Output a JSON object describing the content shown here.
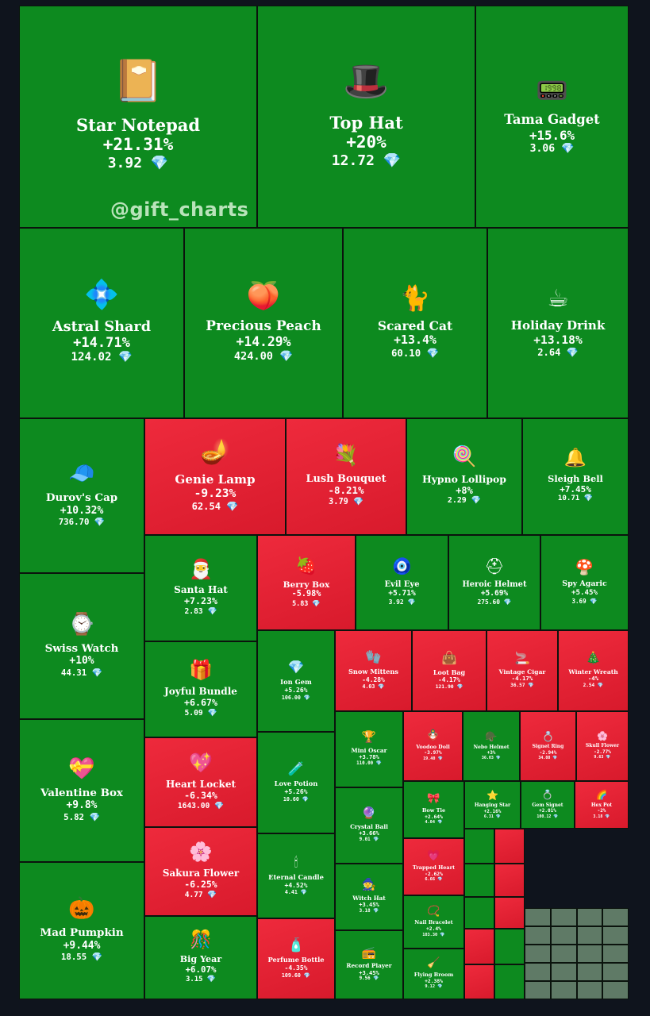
{
  "watermark": "@gift_charts",
  "colors": {
    "positive": "#0d8a1f",
    "negative": "#e52234",
    "neutral": "#5f7a66",
    "background": "#0f141d",
    "currency_icon": "#6fd6ff"
  },
  "currency_icon": "diamond-icon",
  "chart_data": {
    "type": "treemap",
    "currency_symbol": "💎",
    "items": [
      {
        "name": "Star Notepad",
        "change": "+21.31%",
        "change_value": 21.31,
        "price": "3.92",
        "icon": "📔"
      },
      {
        "name": "Top Hat",
        "change": "+20%",
        "change_value": 20,
        "price": "12.72",
        "icon": "🎩"
      },
      {
        "name": "Tama Gadget",
        "change": "+15.6%",
        "change_value": 15.6,
        "price": "3.06",
        "icon": "📟"
      },
      {
        "name": "Astral Shard",
        "change": "+14.71%",
        "change_value": 14.71,
        "price": "124.02",
        "icon": "💠"
      },
      {
        "name": "Precious Peach",
        "change": "+14.29%",
        "change_value": 14.29,
        "price": "424.00",
        "icon": "🍑"
      },
      {
        "name": "Scared Cat",
        "change": "+13.4%",
        "change_value": 13.4,
        "price": "60.10",
        "icon": "🐈"
      },
      {
        "name": "Holiday Drink",
        "change": "+13.18%",
        "change_value": 13.18,
        "price": "2.64",
        "icon": "☕"
      },
      {
        "name": "Durov's Cap",
        "change": "+10.32%",
        "change_value": 10.32,
        "price": "736.70",
        "icon": "🧢"
      },
      {
        "name": "Genie Lamp",
        "change": "-9.23%",
        "change_value": -9.23,
        "price": "62.54",
        "icon": "🪔"
      },
      {
        "name": "Lush Bouquet",
        "change": "-8.21%",
        "change_value": -8.21,
        "price": "3.79",
        "icon": "💐"
      },
      {
        "name": "Hypno Lollipop",
        "change": "+8%",
        "change_value": 8,
        "price": "2.29",
        "icon": "🍭"
      },
      {
        "name": "Sleigh Bell",
        "change": "+7.45%",
        "change_value": 7.45,
        "price": "10.71",
        "icon": "🔔"
      },
      {
        "name": "Santa Hat",
        "change": "+7.23%",
        "change_value": 7.23,
        "price": "2.83",
        "icon": "🎅"
      },
      {
        "name": "Berry Box",
        "change": "-5.98%",
        "change_value": -5.98,
        "price": "5.83",
        "icon": "🍓"
      },
      {
        "name": "Evil Eye",
        "change": "+5.71%",
        "change_value": 5.71,
        "price": "3.92",
        "icon": "🧿"
      },
      {
        "name": "Heroic Helmet",
        "change": "+5.69%",
        "change_value": 5.69,
        "price": "275.60",
        "icon": "⛑"
      },
      {
        "name": "Spy Agaric",
        "change": "+5.45%",
        "change_value": 5.45,
        "price": "3.69",
        "icon": "🍄"
      },
      {
        "name": "Swiss Watch",
        "change": "+10%",
        "change_value": 10,
        "price": "44.31",
        "icon": "⌚"
      },
      {
        "name": "Joyful Bundle",
        "change": "+6.67%",
        "change_value": 6.67,
        "price": "5.09",
        "icon": "🎁"
      },
      {
        "name": "Ion Gem",
        "change": "+5.26%",
        "change_value": 5.26,
        "price": "106.00",
        "icon": "💎"
      },
      {
        "name": "Snow Mittens",
        "change": "-4.28%",
        "change_value": -4.28,
        "price": "4.03",
        "icon": "🧤"
      },
      {
        "name": "Loot Bag",
        "change": "-4.17%",
        "change_value": -4.17,
        "price": "121.90",
        "icon": "👜"
      },
      {
        "name": "Vintage Cigar",
        "change": "-4.17%",
        "change_value": -4.17,
        "price": "36.57",
        "icon": "🚬"
      },
      {
        "name": "Winter Wreath",
        "change": "-4%",
        "change_value": -4,
        "price": "2.54",
        "icon": "🎄"
      },
      {
        "name": "Valentine Box",
        "change": "+9.8%",
        "change_value": 9.8,
        "price": "5.82",
        "icon": "💝"
      },
      {
        "name": "Heart Locket",
        "change": "-6.34%",
        "change_value": -6.34,
        "price": "1643.00",
        "icon": "💖"
      },
      {
        "name": "Love Potion",
        "change": "+5.26%",
        "change_value": 5.26,
        "price": "10.60",
        "icon": "🧪"
      },
      {
        "name": "Mini Oscar",
        "change": "+3.78%",
        "change_value": 3.78,
        "price": "110.00",
        "icon": "🏆"
      },
      {
        "name": "Voodoo Doll",
        "change": "-3.97%",
        "change_value": -3.97,
        "price": "19.40",
        "icon": "🪆"
      },
      {
        "name": "Nebo Helmet",
        "change": "+3%",
        "change_value": 3,
        "price": "36.03",
        "icon": "🪖"
      },
      {
        "name": "Signet Ring",
        "change": "-2.94%",
        "change_value": -2.94,
        "price": "34.08",
        "icon": "💍"
      },
      {
        "name": "Skull Flower",
        "change": "-2.77%",
        "change_value": -2.77,
        "price": "9.63",
        "icon": "🌸"
      },
      {
        "name": "Crystal Ball",
        "change": "+3.66%",
        "change_value": 3.66,
        "price": "9.01",
        "icon": "🔮"
      },
      {
        "name": "Bow Tie",
        "change": "+2.64%",
        "change_value": 2.64,
        "price": "4.04",
        "icon": "🎀"
      },
      {
        "name": "Hanging Star",
        "change": "+2.16%",
        "change_value": 2.16,
        "price": "6.31",
        "icon": "⭐"
      },
      {
        "name": "Gem Signet",
        "change": "+2.01%",
        "change_value": 2.01,
        "price": "100.12",
        "icon": "💍"
      },
      {
        "name": "Hex Pot",
        "change": "-2%",
        "change_value": -2,
        "price": "3.18",
        "icon": "🌈"
      },
      {
        "name": "Sakura Flower",
        "change": "-6.25%",
        "change_value": -6.25,
        "price": "4.77",
        "icon": "🌸"
      },
      {
        "name": "Eternal Candle",
        "change": "+4.52%",
        "change_value": 4.52,
        "price": "4.41",
        "icon": "🕯"
      },
      {
        "name": "Trapped Heart",
        "change": "-2.62%",
        "change_value": -2.62,
        "price": "6.66",
        "icon": "💗"
      },
      {
        "name": "Mad Pumpkin",
        "change": "+9.44%",
        "change_value": 9.44,
        "price": "18.55",
        "icon": "🎃"
      },
      {
        "name": "Big Year",
        "change": "+6.07%",
        "change_value": 6.07,
        "price": "3.15",
        "icon": "🎊"
      },
      {
        "name": "Perfume Bottle",
        "change": "-4.35%",
        "change_value": -4.35,
        "price": "109.60",
        "icon": "🧴"
      },
      {
        "name": "Witch Hat",
        "change": "+3.45%",
        "change_value": 3.45,
        "price": "3.18",
        "icon": "🧙"
      },
      {
        "name": "Record Player",
        "change": "+3.45%",
        "change_value": 3.45,
        "price": "9.56",
        "icon": "📻"
      },
      {
        "name": "Nail Bracelet",
        "change": "+2.4%",
        "change_value": 2.4,
        "price": "103.30",
        "icon": "📿"
      },
      {
        "name": "Flying Broom",
        "change": "+2.38%",
        "change_value": 2.38,
        "price": "9.12",
        "icon": "🧹"
      }
    ]
  }
}
